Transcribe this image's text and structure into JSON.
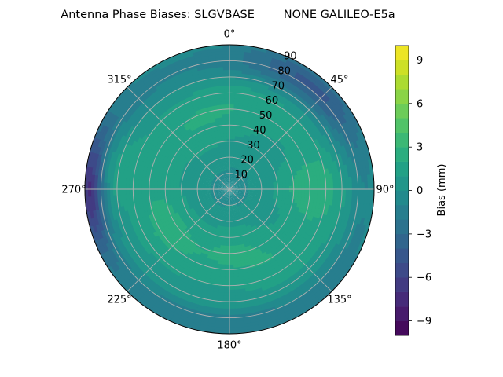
{
  "chart_data": {
    "type": "heatmap",
    "projection": "polar",
    "title": "Antenna Phase Biases: SLGVBASE        NONE GALILEO-E5a",
    "azimuth_ticks": [
      {
        "deg": 0,
        "label": "0°"
      },
      {
        "deg": 45,
        "label": "45°"
      },
      {
        "deg": 90,
        "label": "90°"
      },
      {
        "deg": 135,
        "label": "135°"
      },
      {
        "deg": 180,
        "label": "180°"
      },
      {
        "deg": 225,
        "label": "225°"
      },
      {
        "deg": 270,
        "label": "270°"
      },
      {
        "deg": 315,
        "label": "315°"
      }
    ],
    "radial_ticks": [
      "10",
      "20",
      "30",
      "40",
      "50",
      "60",
      "70",
      "80",
      "90"
    ],
    "radial_range": [
      0,
      90
    ],
    "grid": true,
    "colorbar": {
      "label": "Bias (mm)",
      "range": [
        -10,
        10
      ],
      "ticks": [
        "−9",
        "−6",
        "−3",
        "0",
        "3",
        "6",
        "9"
      ],
      "tick_values": [
        -9,
        -6,
        -3,
        0,
        3,
        6,
        9
      ],
      "colormap": "viridis",
      "levels": 20
    },
    "field": {
      "units": "mm",
      "background": 0.6,
      "features": [
        {
          "az": 270,
          "zen": 88,
          "saz": 18,
          "sr": 6,
          "amp": -6.5
        },
        {
          "az": 40,
          "zen": 82,
          "saz": 25,
          "sr": 9,
          "amp": -4.5
        },
        {
          "az": 200,
          "zen": 85,
          "saz": 45,
          "sr": 7,
          "amp": -2.2
        },
        {
          "az": 320,
          "zen": 82,
          "saz": 40,
          "sr": 9,
          "amp": -1.8
        },
        {
          "az": 120,
          "zen": 85,
          "saz": 35,
          "sr": 7,
          "amp": -1.5
        },
        {
          "az": 0,
          "zen": 0,
          "saz": 360,
          "sr": 12,
          "amp": -1.1
        },
        {
          "az": 90,
          "zen": 52,
          "saz": 16,
          "sr": 14,
          "amp": 2.3
        },
        {
          "az": 240,
          "zen": 45,
          "saz": 25,
          "sr": 11,
          "amp": 1.9
        },
        {
          "az": 280,
          "zen": 70,
          "saz": 12,
          "sr": 8,
          "amp": 1.6
        },
        {
          "az": 330,
          "zen": 45,
          "saz": 30,
          "sr": 12,
          "amp": 1.3
        },
        {
          "az": 175,
          "zen": 40,
          "saz": 25,
          "sr": 12,
          "amp": 1.5
        },
        {
          "az": 20,
          "zen": 55,
          "saz": 30,
          "sr": 10,
          "amp": 1.0
        },
        {
          "az": 140,
          "zen": 55,
          "saz": 20,
          "sr": 10,
          "amp": 1.0
        }
      ]
    }
  }
}
